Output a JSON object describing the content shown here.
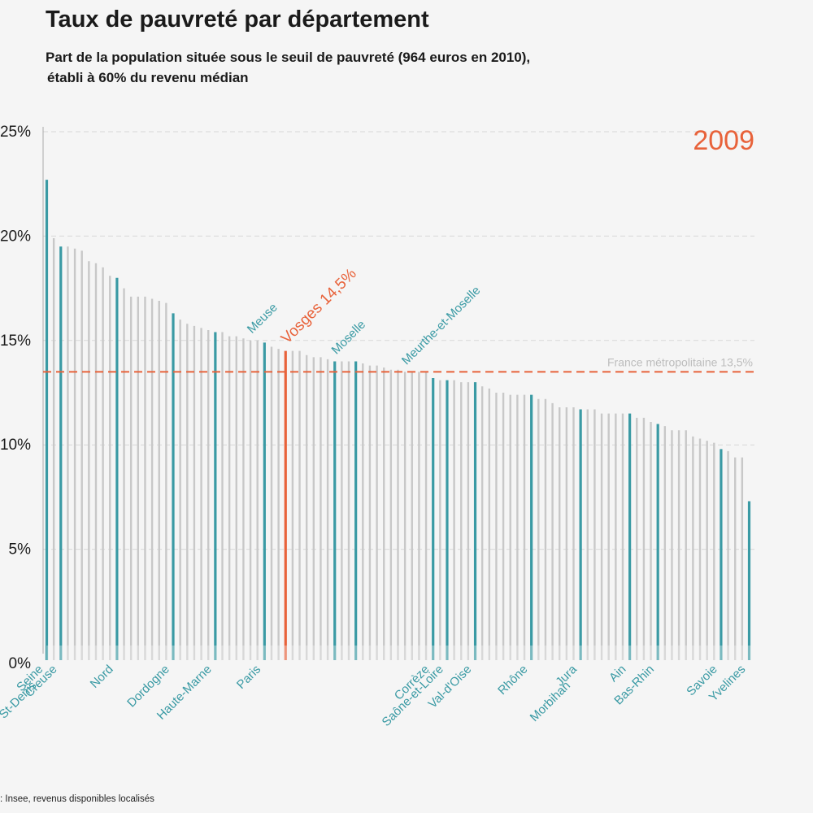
{
  "title": "Taux de pauvreté par département",
  "subtitle_line1": "Part de la population située sous le seuil de pauvreté (964 euros en 2010),",
  "subtitle_line2": "établi à 60% du revenu médian",
  "source": ": Insee, revenus disponibles localisés",
  "year_label": "2009",
  "colors": {
    "background": "#f5f5f5",
    "bar_default": "#c8c8c8",
    "bar_highlight": "#3a9aa4",
    "bar_vosges": "#e8623a",
    "label_teal": "#3a9aa4",
    "accent_orange": "#e8623a",
    "reference_text": "#bdbdbd"
  },
  "chart_data": {
    "type": "bar",
    "title": "Taux de pauvreté par département",
    "ylim": [
      0,
      25
    ],
    "yticks": [
      0,
      5,
      10,
      15,
      20,
      25
    ],
    "ytick_labels": [
      "0%",
      "5%",
      "10%",
      "15%",
      "20%",
      "25%"
    ],
    "grid": true,
    "reference_line": {
      "value": 13.5,
      "label": "France métropolitaine 13,5%"
    },
    "values": [
      22.7,
      19.9,
      19.5,
      19.5,
      19.4,
      19.3,
      18.8,
      18.7,
      18.5,
      18.1,
      18.0,
      17.5,
      17.1,
      17.1,
      17.1,
      17.0,
      16.9,
      16.8,
      16.3,
      16.0,
      15.8,
      15.7,
      15.6,
      15.5,
      15.4,
      15.4,
      15.2,
      15.2,
      15.1,
      15.0,
      15.0,
      14.9,
      14.7,
      14.6,
      14.5,
      14.5,
      14.5,
      14.3,
      14.2,
      14.2,
      14.1,
      14.0,
      14.0,
      14.0,
      14.0,
      13.9,
      13.8,
      13.8,
      13.7,
      13.6,
      13.6,
      13.5,
      13.5,
      13.5,
      13.5,
      13.2,
      13.1,
      13.1,
      13.1,
      13.0,
      13.0,
      13.0,
      12.8,
      12.7,
      12.5,
      12.5,
      12.4,
      12.4,
      12.4,
      12.4,
      12.2,
      12.2,
      12.0,
      11.8,
      11.8,
      11.8,
      11.7,
      11.7,
      11.7,
      11.5,
      11.5,
      11.5,
      11.5,
      11.5,
      11.3,
      11.3,
      11.1,
      11.0,
      10.9,
      10.7,
      10.7,
      10.7,
      10.4,
      10.3,
      10.2,
      10.1,
      9.8,
      9.7,
      9.4,
      9.4,
      7.3
    ],
    "highlighted_indices": [
      0,
      2,
      10,
      18,
      24,
      31,
      41,
      44,
      55,
      57,
      61,
      69,
      76,
      83,
      87,
      96,
      100
    ],
    "bar_labels": [
      {
        "index": 0,
        "text": "Seine"
      },
      {
        "index": 0,
        "text": "St-Denis"
      },
      {
        "index": 2,
        "text": "Creuse"
      },
      {
        "index": 10,
        "text": "Nord"
      },
      {
        "index": 18,
        "text": "Dordogne"
      },
      {
        "index": 24,
        "text": "Haute-Marne"
      },
      {
        "index": 31,
        "text": "Paris"
      },
      {
        "index": 55,
        "text": "Corrèze"
      },
      {
        "index": 57,
        "text": "Saône-et-Loire"
      },
      {
        "index": 61,
        "text": "Val-d'Oise"
      },
      {
        "index": 69,
        "text": "Rhône"
      },
      {
        "index": 76,
        "text": "Jura"
      },
      {
        "index": 76,
        "text": "Morbihan"
      },
      {
        "index": 83,
        "text": "Ain"
      },
      {
        "index": 87,
        "text": "Bas-Rhin"
      },
      {
        "index": 96,
        "text": "Savoie"
      },
      {
        "index": 100,
        "text": "Yvelines"
      }
    ],
    "top_labels": [
      {
        "index": 29,
        "text": "Meuse",
        "color": "teal"
      },
      {
        "index": 34,
        "text": "Vosges 14,5%",
        "color": "orange"
      },
      {
        "index": 41,
        "text": "Moselle",
        "color": "teal"
      },
      {
        "index": 51,
        "text": "Meurthe-et-Moselle",
        "color": "teal"
      }
    ],
    "vosges_index": 34
  }
}
